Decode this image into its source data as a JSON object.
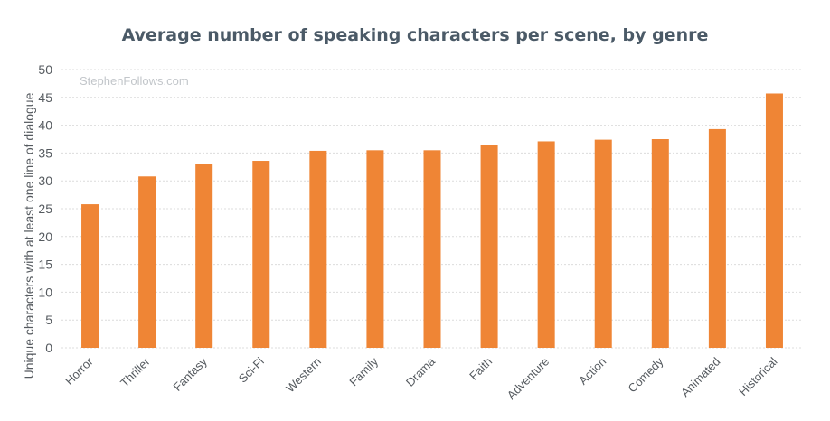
{
  "chart_data": {
    "type": "bar",
    "title": "Average number of speaking characters per scene, by genre",
    "xlabel": "",
    "ylabel": "Unique characters with at least one line of dialogue",
    "ylim": [
      0,
      50
    ],
    "yticks": [
      0,
      5,
      10,
      15,
      20,
      25,
      30,
      35,
      40,
      45,
      50
    ],
    "categories": [
      "Horror",
      "Thriller",
      "Fantasy",
      "Sci-Fi",
      "Western",
      "Family",
      "Drama",
      "Faith",
      "Adventure",
      "Action",
      "Comedy",
      "Animated",
      "Historical"
    ],
    "values": [
      25.8,
      30.8,
      33.1,
      33.6,
      35.4,
      35.5,
      35.5,
      36.4,
      37.1,
      37.4,
      37.5,
      39.3,
      45.7
    ],
    "bar_color": "#ef8535",
    "grid": true,
    "legend": "none",
    "watermark": "StephenFollows.com"
  }
}
